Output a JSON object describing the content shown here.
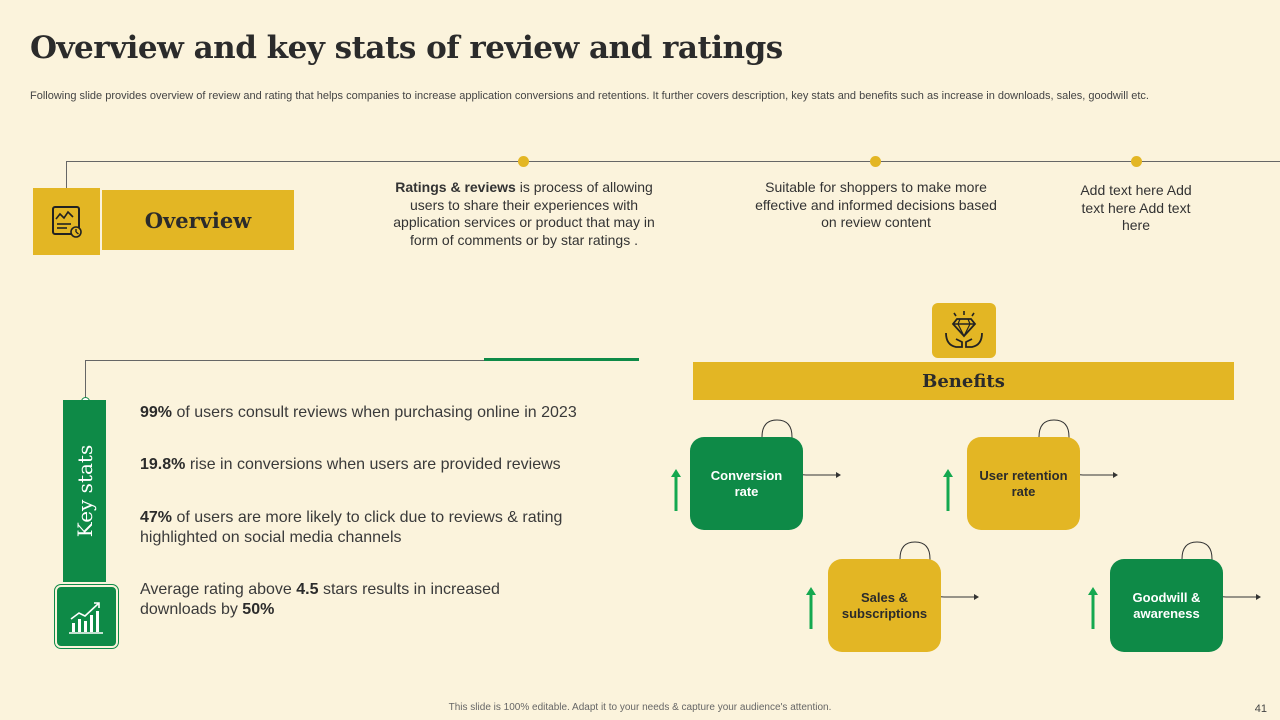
{
  "title": "Overview and key stats of review and ratings",
  "subtitle": "Following slide provides overview of review and rating that helps companies to increase application conversions and retentions. It further covers description, key stats and benefits such as increase in downloads, sales, goodwill etc.",
  "overview": {
    "label": "Overview",
    "icon": "review-document-icon",
    "items": [
      {
        "bold": "Ratings & reviews",
        "text": " is process of allowing users to share their experiences with application services or product that may in form of comments or by star ratings ."
      },
      {
        "bold": "",
        "text": "Suitable for shoppers to make more effective and informed decisions based on review content"
      },
      {
        "bold": "",
        "text": "Add text here Add text here Add text here"
      }
    ]
  },
  "key_stats": {
    "label": "Key stats",
    "icon": "growth-chart-icon",
    "items": [
      {
        "p1": "99%",
        "t1": " of users consult reviews when purchasing online in 2023",
        "p2": "",
        "t2": ""
      },
      {
        "p1": "19.8%",
        "t1": " rise in conversions when users are provided reviews",
        "p2": "",
        "t2": ""
      },
      {
        "p1": "47%",
        "t1": " of users are more likely to click due to reviews & rating highlighted on social media channels",
        "p2": "",
        "t2": ""
      },
      {
        "p1": "",
        "t1": "Average rating above ",
        "p2": "4.5",
        "t2": " stars results in increased downloads by ",
        "p3": "50%"
      }
    ]
  },
  "benefits": {
    "label": "Benefits",
    "icon": "diamond-hands-icon",
    "items": [
      {
        "label": "Conversion rate",
        "color": "#0e8a47"
      },
      {
        "label": "User retention rate",
        "color": "#e3b624"
      },
      {
        "label": "Sales & subscriptions",
        "color": "#e3b624"
      },
      {
        "label": "Goodwill & awareness",
        "color": "#0e8a47"
      }
    ],
    "indicator_icon": "up-arrow-icon"
  },
  "footer": "This slide is 100% editable.  Adapt it to your needs & capture your audience's attention.",
  "page_number": "41",
  "colors": {
    "accent_yellow": "#e3b624",
    "accent_green": "#0e8a47",
    "background": "#fbf3dc"
  }
}
